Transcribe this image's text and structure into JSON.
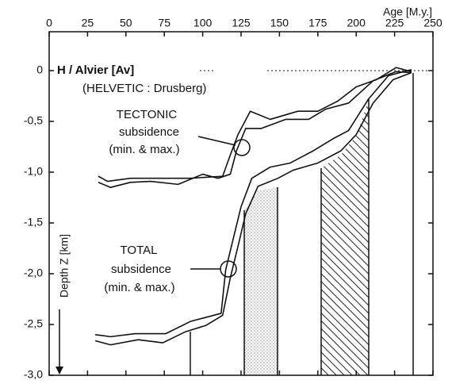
{
  "chart_data": {
    "type": "line",
    "x_label": "Age [M.y.]",
    "y_label": "Depth Z [km]",
    "annotations": [
      "H / Alvier [Av]",
      "(HELVETIC : Drusberg)",
      "TECTONIC",
      "subsidence",
      "(min. & max.)",
      "TOTAL",
      "subsidence",
      "(min. & max.)"
    ],
    "xlim": [
      0,
      250
    ],
    "xticks": [
      0,
      25,
      50,
      75,
      100,
      125,
      150,
      175,
      200,
      225,
      250
    ],
    "ylim": [
      -3.0,
      0.2
    ],
    "yticks": [
      0,
      {
        "value": -0.5,
        "label": "-0,5"
      },
      {
        "value": -1.0,
        "label": "-1,0"
      },
      {
        "value": -1.5,
        "label": "-1,5"
      },
      {
        "value": -2.0,
        "label": "-2,0"
      },
      {
        "value": -2.5,
        "label": "-2,5"
      },
      {
        "value": -3.0,
        "label": "-3,0"
      }
    ],
    "series": [
      {
        "color": "#111111",
        "x": [
          32,
          38,
          53,
          71,
          92,
          113,
          118,
          123,
          131,
          144,
          162,
          175,
          188,
          200,
          213,
          226,
          236
        ],
        "values": [
          -1.04,
          -1.09,
          -1.06,
          -1.06,
          -1.06,
          -1.04,
          -0.83,
          -0.63,
          -0.4,
          -0.48,
          -0.4,
          -0.4,
          -0.3,
          -0.16,
          -0.09,
          0.03,
          -0.01
        ]
      },
      {
        "color": "#111111",
        "x": [
          32,
          40,
          53,
          66,
          84,
          100,
          110,
          118,
          122,
          128,
          138,
          154,
          169,
          180,
          195,
          211,
          226,
          236
        ],
        "values": [
          -1.1,
          -1.15,
          -1.1,
          -1.09,
          -1.12,
          -1.02,
          -1.06,
          -1.02,
          -0.79,
          -0.57,
          -0.57,
          -0.48,
          -0.48,
          -0.38,
          -0.32,
          -0.1,
          -0.01,
          -0.02
        ]
      },
      {
        "color": "#111111",
        "x": [
          30,
          40,
          56,
          76,
          92,
          102,
          112,
          115,
          120,
          125,
          132,
          144,
          157,
          172,
          185,
          195,
          208,
          221,
          236
        ],
        "values": [
          -2.6,
          -2.62,
          -2.59,
          -2.59,
          -2.47,
          -2.43,
          -2.39,
          -1.96,
          -1.65,
          -1.34,
          -1.06,
          -0.95,
          -0.91,
          -0.79,
          -0.67,
          -0.59,
          -0.28,
          -0.05,
          0.01
        ]
      },
      {
        "color": "#111111",
        "x": [
          30,
          40,
          58,
          74,
          89,
          102,
          113,
          118,
          123,
          128,
          136,
          149,
          159,
          175,
          190,
          200,
          211,
          224,
          236
        ],
        "values": [
          -2.66,
          -2.7,
          -2.65,
          -2.68,
          -2.57,
          -2.51,
          -2.41,
          -2.04,
          -1.73,
          -1.41,
          -1.14,
          -1.06,
          -0.98,
          -0.91,
          -0.79,
          -0.63,
          -0.32,
          -0.09,
          -0.02
        ]
      }
    ]
  }
}
